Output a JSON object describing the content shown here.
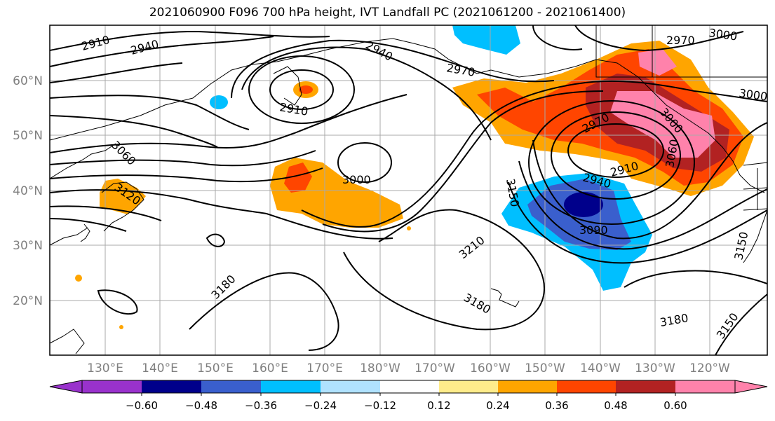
{
  "title": "2021060900 F096 700 hPa height, IVT Landfall PC (2021061200 - 2021061400)",
  "lat_labels": [
    "60°N",
    "50°N",
    "40°N",
    "30°N",
    "20°N"
  ],
  "lon_labels": [
    "130°E",
    "140°E",
    "150°E",
    "160°E",
    "170°E",
    "180°W",
    "170°W",
    "160°W",
    "150°W",
    "140°W",
    "130°W",
    "120°W"
  ],
  "contour_labels": [
    "2910",
    "2940",
    "2940",
    "2970",
    "2970",
    "3000",
    "3000",
    "3000",
    "2910",
    "3060",
    "3120",
    "3000",
    "3150",
    "2970",
    "2910",
    "2940",
    "3090",
    "3210",
    "3180",
    "3180",
    "3180",
    "3150",
    "3150",
    "3060"
  ],
  "colorbar": {
    "ticks": [
      "−0.60",
      "−0.48",
      "−0.36",
      "−0.24",
      "−0.12",
      "0.12",
      "0.24",
      "0.36",
      "0.48",
      "0.60"
    ],
    "colors": [
      "#9932cc",
      "#00008b",
      "#3a5fcd",
      "#00bfff",
      "#b0e2ff",
      "#ffffff",
      "#ffec8b",
      "#ffa500",
      "#ff4500",
      "#b22222",
      "#ff82ab"
    ]
  }
}
